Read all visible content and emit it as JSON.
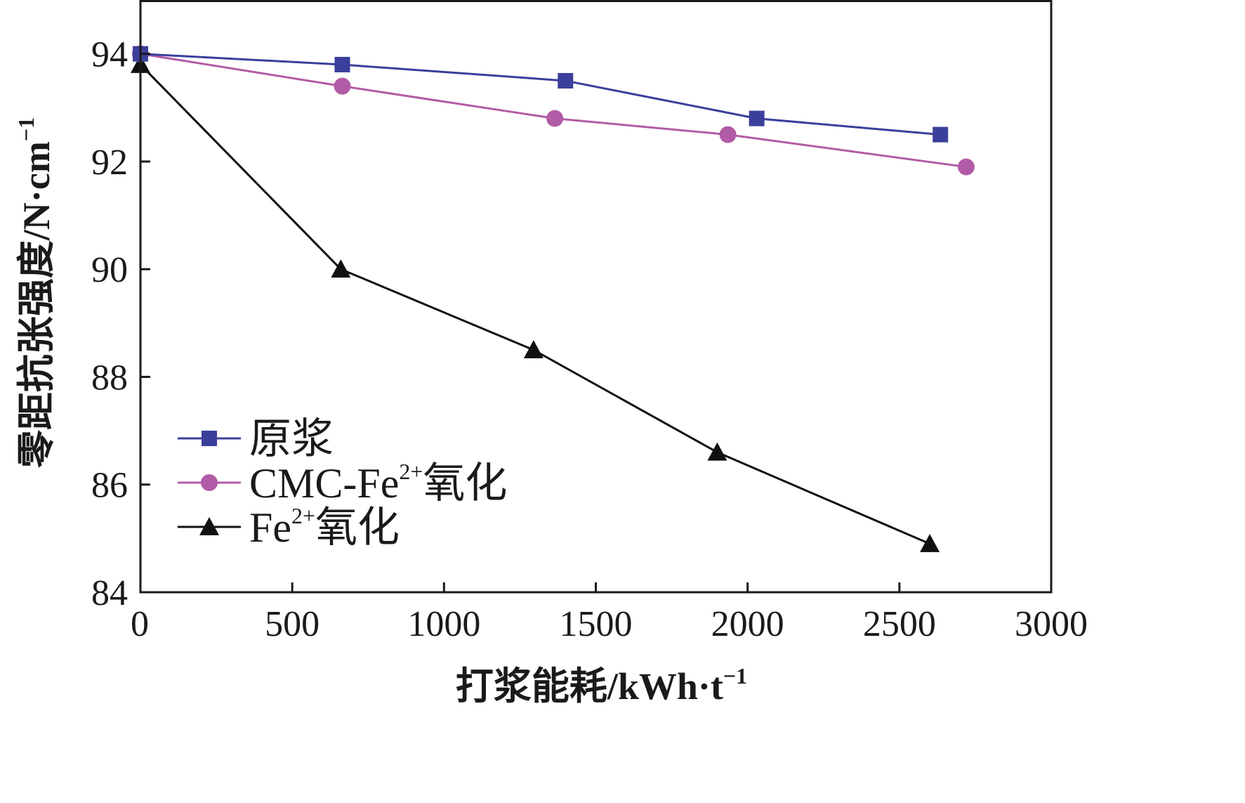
{
  "chart_data": {
    "type": "line",
    "title": "",
    "xlabel": {
      "main": "打浆能耗/kWh·t",
      "sup": "−1"
    },
    "ylabel": {
      "main": "零距抗张强度/N·cm",
      "sup": "−1"
    },
    "xlim": [
      0,
      3000
    ],
    "ylim": [
      84,
      95
    ],
    "xticks": [
      0,
      500,
      1000,
      1500,
      2000,
      2500,
      3000
    ],
    "yticks": [
      84,
      86,
      88,
      90,
      92,
      94
    ],
    "grid": false,
    "legend_position": "bottom-left",
    "series": [
      {
        "name": "原浆",
        "name_parts": {
          "main": "原浆",
          "sup": "",
          "tail": ""
        },
        "marker": "square",
        "color": "#3a3f9b",
        "x": [
          0,
          665,
          1400,
          2030,
          2635
        ],
        "y": [
          94.0,
          93.8,
          93.5,
          92.8,
          92.5
        ]
      },
      {
        "name": "CMC-Fe2+氧化",
        "name_parts": {
          "main": "CMC-Fe",
          "sup": "2+",
          "tail": "氧化"
        },
        "marker": "circle",
        "color": "#b25ba6",
        "x": [
          0,
          665,
          1365,
          1935,
          2720
        ],
        "y": [
          94.0,
          93.4,
          92.8,
          92.5,
          91.9
        ]
      },
      {
        "name": "Fe2+氧化",
        "name_parts": {
          "main": "Fe",
          "sup": "2+",
          "tail": "氧化"
        },
        "marker": "triangle",
        "color": "#111111",
        "x": [
          0,
          660,
          1295,
          1900,
          2600
        ],
        "y": [
          93.8,
          90.0,
          88.5,
          86.6,
          84.9
        ]
      }
    ]
  }
}
